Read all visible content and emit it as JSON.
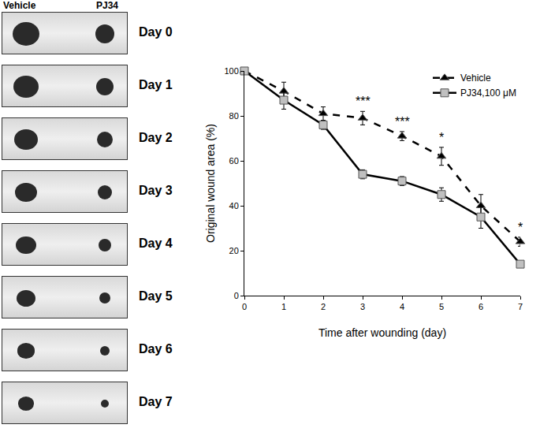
{
  "photo_panel": {
    "column_labels": [
      "Vehicle",
      "PJ34"
    ],
    "rows": [
      "Day 0",
      "Day 1",
      "Day 2",
      "Day 3",
      "Day 4",
      "Day 5",
      "Day 6",
      "Day 7"
    ]
  },
  "chart_data": {
    "type": "line",
    "x_label": "Time after wounding (day)",
    "y_label": "Original wound area (%)",
    "x": [
      0,
      1,
      2,
      3,
      4,
      5,
      6,
      7
    ],
    "series": [
      {
        "name": "Vehicle",
        "color": "#000000",
        "marker": "triangle",
        "line_style": "dashed",
        "values": [
          100,
          91,
          81,
          79,
          71,
          62,
          40,
          24
        ],
        "errors": [
          0,
          4,
          3,
          3,
          2,
          4,
          5,
          2
        ]
      },
      {
        "name": "PJ34,100 μM",
        "color": "#c0c0c0",
        "marker": "square",
        "line_style": "solid",
        "values": [
          100,
          87,
          76,
          54,
          51,
          45,
          35,
          14
        ],
        "errors": [
          0,
          4,
          2,
          2,
          2,
          3,
          5,
          1
        ]
      }
    ],
    "annotations": [
      {
        "x": 3,
        "text": "***"
      },
      {
        "x": 4,
        "text": "***"
      },
      {
        "x": 5,
        "text": "*"
      },
      {
        "x": 7,
        "text": "*"
      }
    ],
    "xlim": [
      0,
      7
    ],
    "xticks": [
      0,
      1,
      2,
      3,
      4,
      5,
      6,
      7
    ],
    "ylim": [
      0,
      100
    ],
    "yticks": [
      0,
      20,
      40,
      60,
      80,
      100
    ],
    "grid": false,
    "legend": "upper right"
  }
}
